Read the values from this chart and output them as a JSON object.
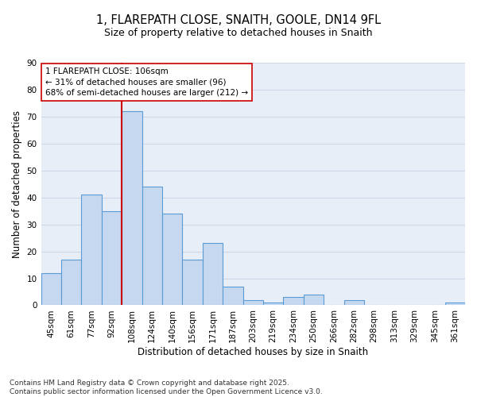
{
  "title1": "1, FLAREPATH CLOSE, SNAITH, GOOLE, DN14 9FL",
  "title2": "Size of property relative to detached houses in Snaith",
  "xlabel": "Distribution of detached houses by size in Snaith",
  "ylabel": "Number of detached properties",
  "categories": [
    "45sqm",
    "61sqm",
    "77sqm",
    "92sqm",
    "108sqm",
    "124sqm",
    "140sqm",
    "156sqm",
    "171sqm",
    "187sqm",
    "203sqm",
    "219sqm",
    "234sqm",
    "250sqm",
    "266sqm",
    "282sqm",
    "298sqm",
    "313sqm",
    "329sqm",
    "345sqm",
    "361sqm"
  ],
  "values": [
    12,
    17,
    41,
    35,
    72,
    44,
    34,
    17,
    23,
    7,
    2,
    1,
    3,
    4,
    0,
    2,
    0,
    0,
    0,
    0,
    1
  ],
  "bar_color": "#c5d8f0",
  "bar_edge_color": "#5b9bd5",
  "vline_x_index": 4,
  "vline_color": "#cc0000",
  "annotation_line1": "1 FLAREPATH CLOSE: 106sqm",
  "annotation_line2": "← 31% of detached houses are smaller (96)",
  "annotation_line3": "68% of semi-detached houses are larger (212) →",
  "annotation_box_facecolor": "#ffffff",
  "annotation_box_edgecolor": "#cc0000",
  "ylim": [
    0,
    90
  ],
  "yticks": [
    0,
    10,
    20,
    30,
    40,
    50,
    60,
    70,
    80,
    90
  ],
  "grid_color": "#d0d8e8",
  "background_color": "#e8eef8",
  "footer_text": "Contains HM Land Registry data © Crown copyright and database right 2025.\nContains public sector information licensed under the Open Government Licence v3.0.",
  "title1_fontsize": 10.5,
  "title2_fontsize": 9,
  "axis_label_fontsize": 8.5,
  "tick_fontsize": 7.5,
  "annotation_fontsize": 7.5,
  "footer_fontsize": 6.5
}
